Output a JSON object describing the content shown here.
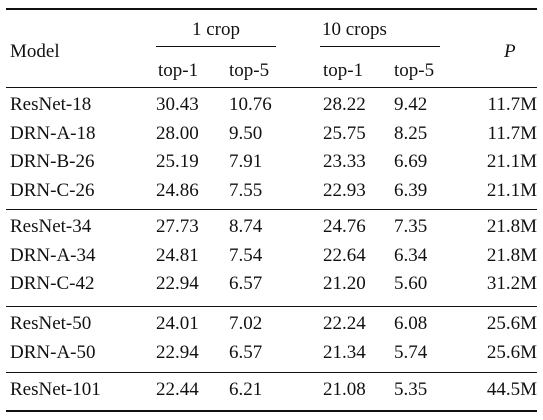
{
  "header": {
    "model": "Model",
    "crop1": "1 crop",
    "crop10": "10 crops",
    "params": "P",
    "top1": "top-1",
    "top5": "top-5"
  },
  "groups": [
    {
      "rows": [
        {
          "model": "ResNet-18",
          "c1_top1": "30.43",
          "c1_top5": "10.76",
          "c10_top1": "28.22",
          "c10_top5": "9.42",
          "params": "11.7M"
        },
        {
          "model": "DRN-A-18",
          "c1_top1": "28.00",
          "c1_top5": "9.50",
          "c10_top1": "25.75",
          "c10_top5": "8.25",
          "params": "11.7M"
        },
        {
          "model": "DRN-B-26",
          "c1_top1": "25.19",
          "c1_top5": "7.91",
          "c10_top1": "23.33",
          "c10_top5": "6.69",
          "params": "21.1M"
        },
        {
          "model": "DRN-C-26",
          "c1_top1": "24.86",
          "c1_top5": "7.55",
          "c10_top1": "22.93",
          "c10_top5": "6.39",
          "params": "21.1M"
        }
      ]
    },
    {
      "rows": [
        {
          "model": "ResNet-34",
          "c1_top1": "27.73",
          "c1_top5": "8.74",
          "c10_top1": "24.76",
          "c10_top5": "7.35",
          "params": "21.8M"
        },
        {
          "model": "DRN-A-34",
          "c1_top1": "24.81",
          "c1_top5": "7.54",
          "c10_top1": "22.64",
          "c10_top5": "6.34",
          "params": "21.8M"
        },
        {
          "model": "DRN-C-42",
          "c1_top1": "22.94",
          "c1_top5": "6.57",
          "c10_top1": "21.20",
          "c10_top5": "5.60",
          "params": "31.2M"
        }
      ]
    },
    {
      "rows": [
        {
          "model": "ResNet-50",
          "c1_top1": "24.01",
          "c1_top5": "7.02",
          "c10_top1": "22.24",
          "c10_top5": "6.08",
          "params": "25.6M"
        },
        {
          "model": "DRN-A-50",
          "c1_top1": "22.94",
          "c1_top5": "6.57",
          "c10_top1": "21.34",
          "c10_top5": "5.74",
          "params": "25.6M"
        }
      ]
    },
    {
      "rows": [
        {
          "model": "ResNet-101",
          "c1_top1": "22.44",
          "c1_top5": "6.21",
          "c10_top1": "21.08",
          "c10_top5": "5.35",
          "params": "44.5M"
        }
      ]
    }
  ]
}
